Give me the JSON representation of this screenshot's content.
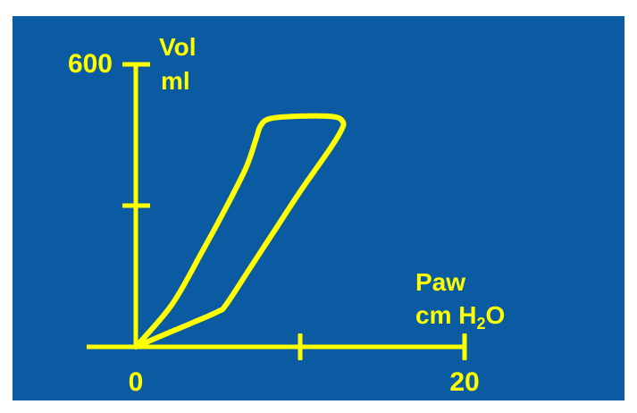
{
  "colors": {
    "background": "#0b5ba3",
    "foreground": "#ffff00"
  },
  "chart_data": {
    "type": "line",
    "title": "",
    "ylabel": {
      "line1": "Vol",
      "line2": "ml"
    },
    "xlabel": {
      "line1": "Paw",
      "line2_prefix": "cm H",
      "line2_sub": "2",
      "line2_suffix": "O"
    },
    "xlim": [
      0,
      20
    ],
    "ylim": [
      0,
      600
    ],
    "x_ticks": [
      0,
      10,
      20
    ],
    "y_ticks": [
      0,
      300,
      600
    ],
    "x_tick_labels": [
      "0",
      "20"
    ],
    "y_tick_labels": [
      "600"
    ],
    "series": [
      {
        "closed": true,
        "points": [
          [
            0,
            0
          ],
          [
            2.2,
            90
          ],
          [
            4.0,
            200
          ],
          [
            5.4,
            290
          ],
          [
            6.7,
            380
          ],
          [
            7.3,
            440
          ],
          [
            7.6,
            470
          ],
          [
            8.2,
            485
          ],
          [
            10,
            490
          ],
          [
            12.0,
            489
          ],
          [
            12.6,
            478
          ],
          [
            12.5,
            460
          ],
          [
            11.8,
            420
          ],
          [
            10,
            330
          ],
          [
            8.5,
            250
          ],
          [
            7.0,
            170
          ],
          [
            5.5,
            90
          ],
          [
            5.0,
            75
          ],
          [
            3.5,
            52
          ],
          [
            2.0,
            30
          ],
          [
            0.8,
            12
          ],
          [
            0,
            0
          ]
        ]
      }
    ]
  }
}
